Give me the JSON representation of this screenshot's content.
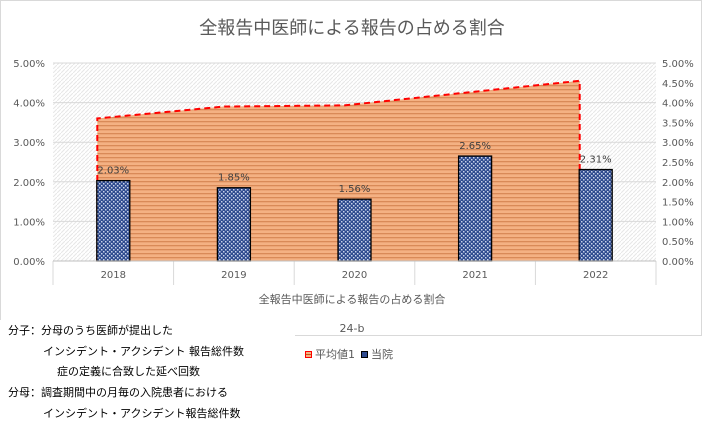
{
  "chart_data": {
    "type": "bar",
    "title": "全報告中医師による報告の占める割合",
    "xlabel": "全報告中医師による報告の占める割合",
    "sub_label": "24-b",
    "categories": [
      "2018",
      "2019",
      "2020",
      "2021",
      "2022"
    ],
    "series": [
      {
        "name": "当院",
        "kind": "bar",
        "axis": "left",
        "values": [
          2.03,
          1.85,
          1.56,
          2.65,
          2.31
        ],
        "labels": [
          "2.03%",
          "1.85%",
          "1.56%",
          "2.65%",
          "2.31%"
        ],
        "color": "#2f4b8f"
      },
      {
        "name": "平均値1",
        "kind": "area",
        "axis": "right",
        "values": [
          3.6,
          3.9,
          3.93,
          4.25,
          4.55
        ],
        "color": "#f4b183",
        "line_color": "#ff0000"
      }
    ],
    "ylim": [
      0,
      5
    ],
    "y_ticks": [
      "0.00%",
      "1.00%",
      "2.00%",
      "3.00%",
      "4.00%",
      "5.00%"
    ],
    "y2lim": [
      0,
      5
    ],
    "y2_ticks": [
      "0.00%",
      "0.50%",
      "1.00%",
      "1.50%",
      "2.00%",
      "2.50%",
      "3.00%",
      "3.50%",
      "4.00%",
      "4.50%",
      "5.00%"
    ],
    "legend": "bottom",
    "grid": true
  },
  "note": {
    "lines": [
      "分子：分母のうち医師が提出した",
      "インシデント・アクシデント 報告総件数",
      "症の定義に合致した延べ回数",
      "分母：調査期間中の月毎の入院患者における",
      "インシデント・アクシデント報告総件数"
    ]
  },
  "legend_labels": {
    "avg": "平均値1",
    "hospital": "当院"
  }
}
